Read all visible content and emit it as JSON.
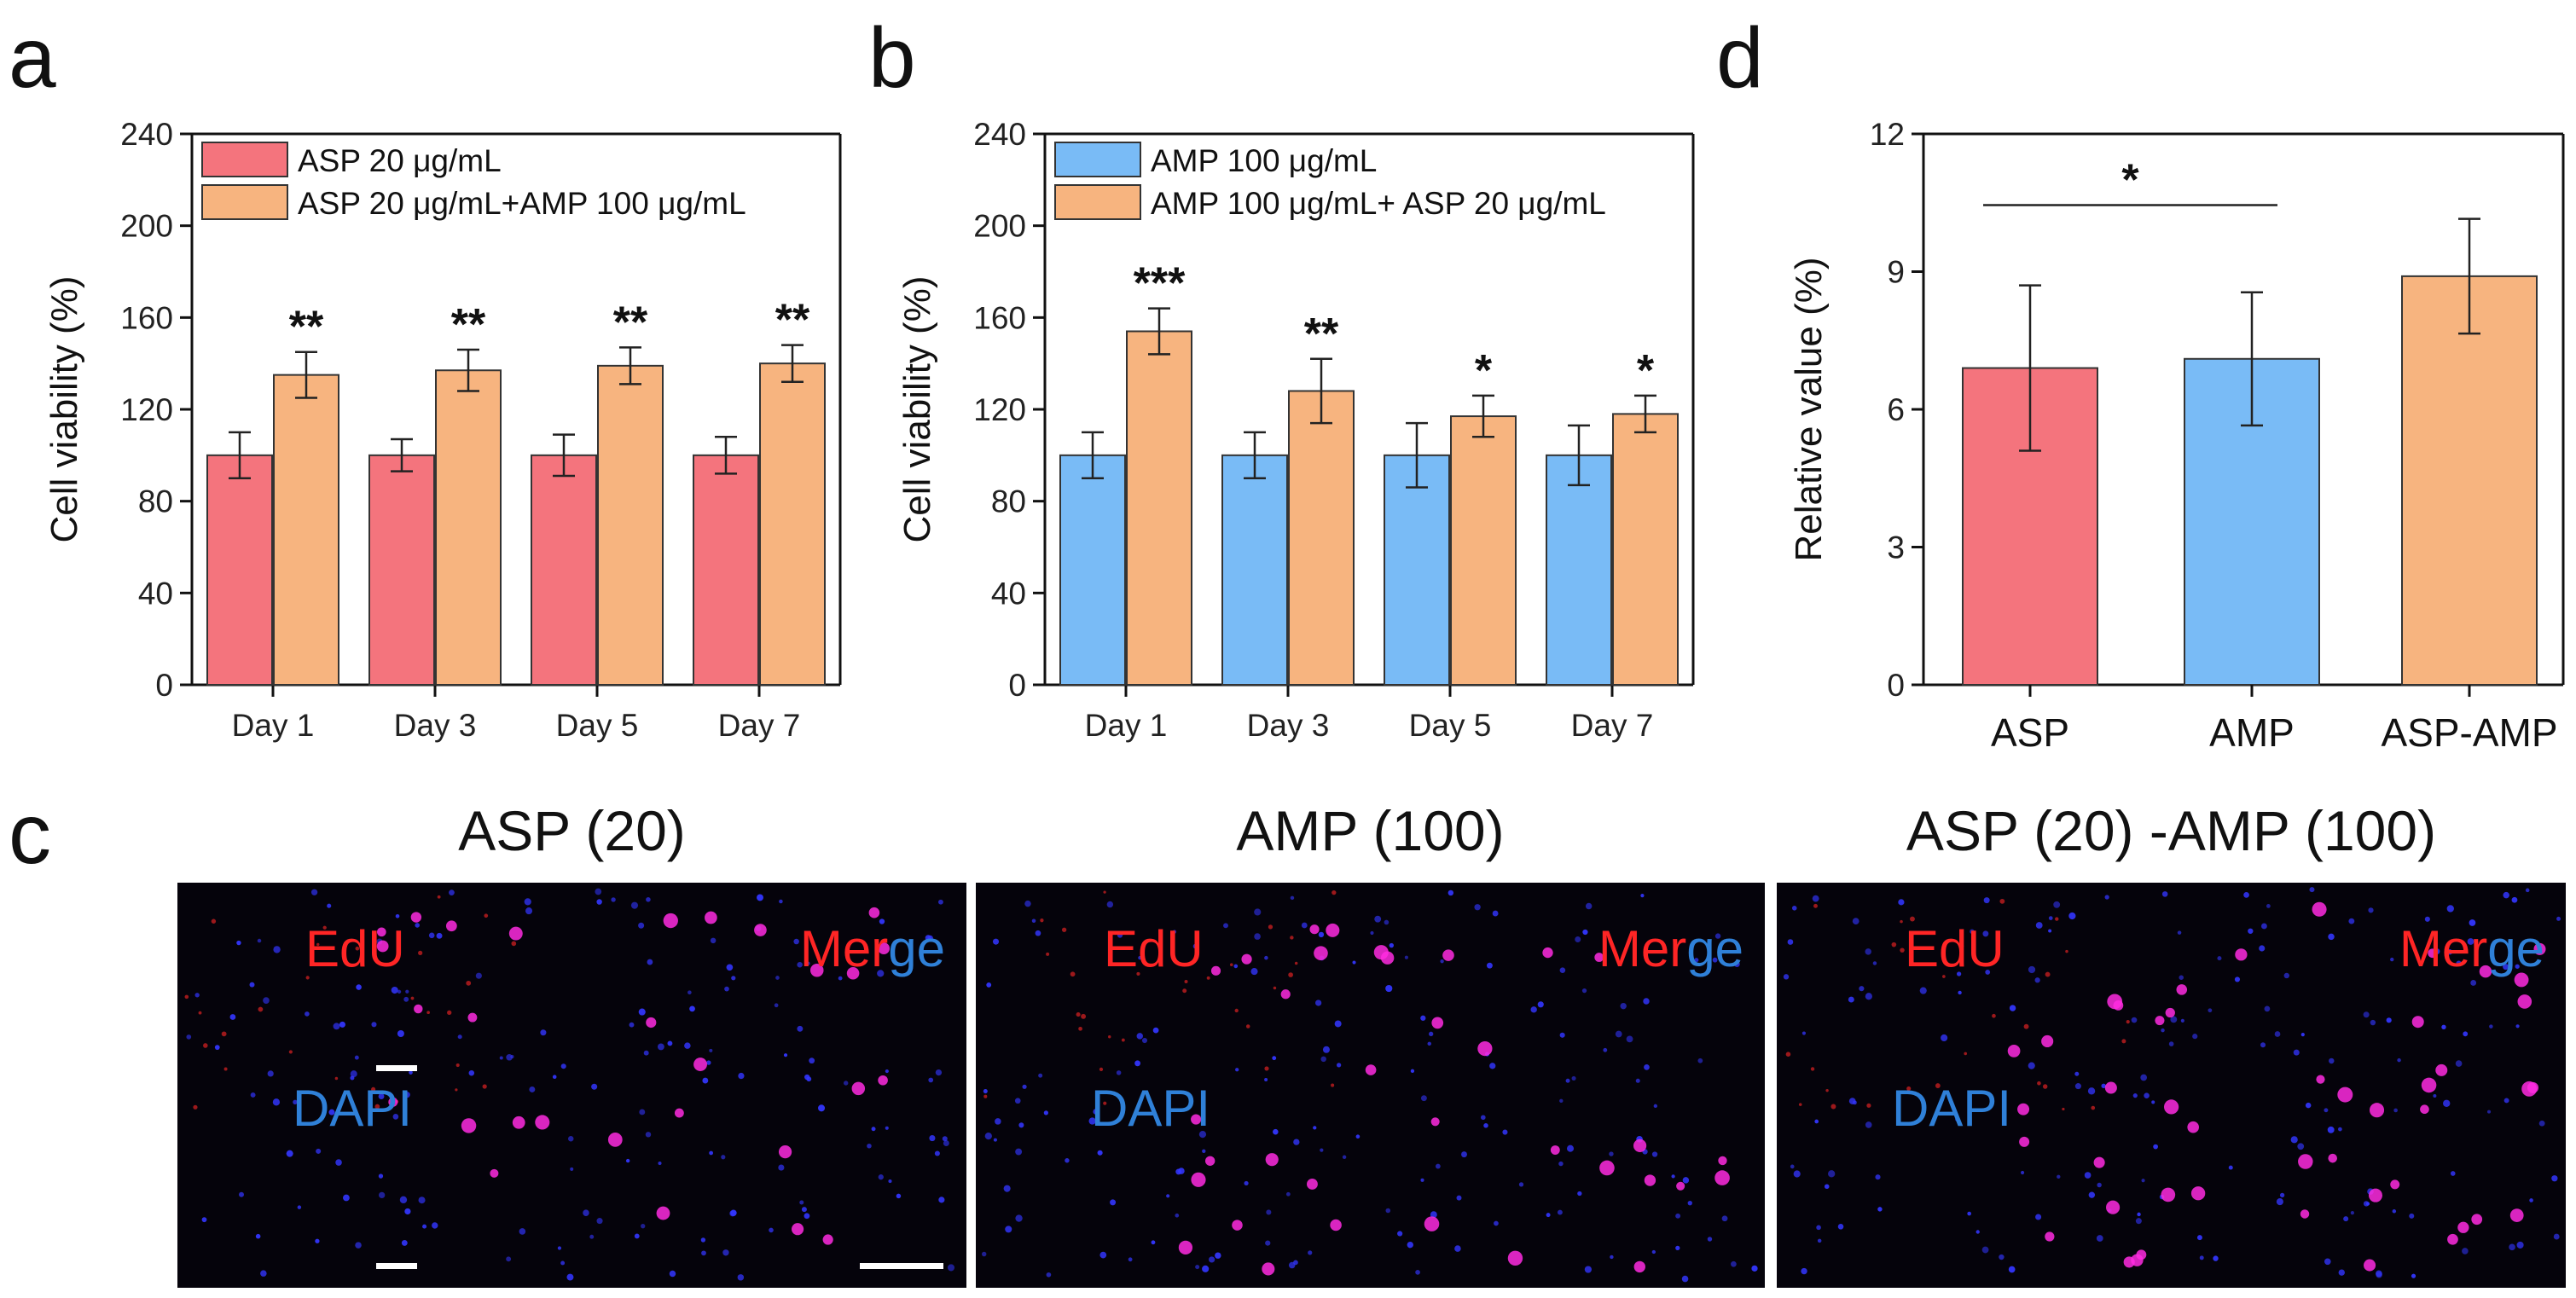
{
  "colors": {
    "red": "#f4747d",
    "blue": "#79bbf6",
    "orange": "#f7b47f",
    "axis": "#111111",
    "panel_bg": "#05030b",
    "edu": "#ff2525",
    "dapi": "#2f80d8",
    "nucleus": "#3336ff",
    "merge_dot": "#ff2ce0"
  },
  "panel_letters": {
    "a": "a",
    "b": "b",
    "c": "c",
    "d": "d"
  },
  "chart_data": [
    {
      "id": "a",
      "type": "bar",
      "title": "",
      "xlabel": "",
      "ylabel": "Cell viability (%)",
      "ylim": [
        0,
        240
      ],
      "yticks": [
        0,
        40,
        80,
        120,
        160,
        200,
        240
      ],
      "categories": [
        "Day 1",
        "Day 3",
        "Day 5",
        "Day 7"
      ],
      "legend_position": "top-left",
      "series": [
        {
          "name": "ASP 20 μg/mL",
          "color": "#f4747d",
          "values": [
            100,
            100,
            100,
            100
          ],
          "errors": [
            10,
            7,
            9,
            8
          ],
          "sig": [
            "",
            "",
            "",
            ""
          ]
        },
        {
          "name": "ASP 20 μg/mL+AMP 100 μg/mL",
          "color": "#f7b47f",
          "values": [
            135,
            137,
            139,
            140
          ],
          "errors": [
            10,
            9,
            8,
            8
          ],
          "sig": [
            "**",
            "**",
            "**",
            "**"
          ]
        }
      ]
    },
    {
      "id": "b",
      "type": "bar",
      "title": "",
      "xlabel": "",
      "ylabel": "Cell viability (%)",
      "ylim": [
        0,
        240
      ],
      "yticks": [
        0,
        40,
        80,
        120,
        160,
        200,
        240
      ],
      "categories": [
        "Day 1",
        "Day 3",
        "Day 5",
        "Day 7"
      ],
      "legend_position": "top-left",
      "series": [
        {
          "name": "AMP 100 μg/mL",
          "color": "#79bbf6",
          "values": [
            100,
            100,
            100,
            100
          ],
          "errors": [
            10,
            10,
            14,
            13
          ],
          "sig": [
            "",
            "",
            "",
            ""
          ]
        },
        {
          "name": "AMP 100 μg/mL+ ASP 20 μg/mL",
          "color": "#f7b47f",
          "values": [
            154,
            128,
            117,
            118
          ],
          "errors": [
            10,
            14,
            9,
            8
          ],
          "sig": [
            "***",
            "**",
            "*",
            "*"
          ]
        }
      ]
    },
    {
      "id": "d",
      "type": "bar",
      "title": "",
      "xlabel": "",
      "ylabel": "Relative value (%)",
      "ylim": [
        0,
        12
      ],
      "yticks": [
        0,
        3,
        6,
        9,
        12
      ],
      "categories": [
        "ASP",
        "AMP",
        "ASP-AMP"
      ],
      "values": [
        6.9,
        7.1,
        8.9
      ],
      "errors": [
        1.8,
        1.45,
        1.25
      ],
      "colors": [
        "#f4747d",
        "#79bbf6",
        "#f7b47f"
      ],
      "significance": {
        "between": [
          "ASP",
          "AMP"
        ],
        "label": "*"
      }
    }
  ],
  "micrographs": {
    "panel_letter": "c",
    "tiles": [
      {
        "title": "ASP (20)",
        "edu_label": "EdU",
        "dapi_label": "DAPI",
        "merge_part_red": "Mer",
        "merge_part_blue": "ge",
        "merge_density": 0.75
      },
      {
        "title": "AMP (100)",
        "edu_label": "EdU",
        "dapi_label": "DAPI",
        "merge_part_red": "Mer",
        "merge_part_blue": "ge",
        "merge_density": 0.9
      },
      {
        "title": "ASP (20) -AMP (100)",
        "edu_label": "EdU",
        "dapi_label": "DAPI",
        "merge_part_red": "Mer",
        "merge_part_blue": "ge",
        "merge_density": 1.2
      }
    ]
  }
}
